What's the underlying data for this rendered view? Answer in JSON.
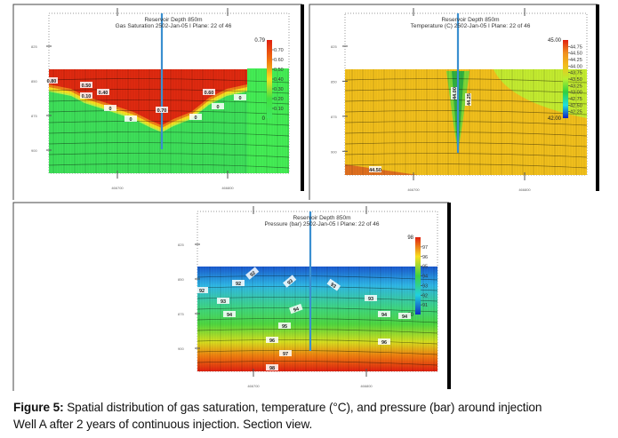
{
  "panels": [
    {
      "title_line1": "Reservoir Depth 850m",
      "title_line2": "Gas Saturation  2502-Jan-05   I Plane: 22 of 46",
      "y_ticks": [
        "825",
        "850",
        "875",
        "900"
      ],
      "x_ticks": [
        "466700",
        "466800"
      ],
      "colorbar": {
        "max_label": "0.79",
        "min_label": "0",
        "tick_labels": [
          "0.70",
          "0.60",
          "0.50",
          "0.40",
          "0.30",
          "0.20",
          "0.10"
        ],
        "colors": [
          "#e02010",
          "#f07010",
          "#f8e020",
          "#40e040",
          "#40e860"
        ]
      },
      "contour_labels": [
        "0.80",
        "0.50",
        "0.40",
        "0.10",
        "0",
        "0",
        "0.70",
        "0",
        "0.60",
        "0",
        "0"
      ]
    },
    {
      "title_line1": "Reservoir Depth 850m",
      "title_line2": "Temperature (C)  2502-Jan-05   I Plane: 22 of 46",
      "y_ticks": [
        "825",
        "850",
        "875",
        "900"
      ],
      "x_ticks": [
        "466700",
        "466800"
      ],
      "colorbar": {
        "max_label": "45.00",
        "min_label": "42.00",
        "tick_labels": [
          "44.75",
          "44.50",
          "44.25",
          "44.00",
          "43.75",
          "43.50",
          "43.25",
          "43.00",
          "42.75",
          "42.50",
          "42.25"
        ],
        "colors": [
          "#e02010",
          "#f09020",
          "#f2c01c",
          "#b8f030",
          "#30d040",
          "#20e0e0",
          "#1020c0"
        ]
      },
      "contour_labels": [
        "44.00",
        "44.25",
        "44.50"
      ]
    },
    {
      "title_line1": "Reservoir Depth 850m",
      "title_line2": "Pressure (bar)  2502-Jan-05   I Plane: 22 of 46",
      "y_ticks": [
        "825",
        "850",
        "875",
        "900"
      ],
      "x_ticks": [
        "466700",
        "466800"
      ],
      "colorbar": {
        "max_label": "98",
        "min_label": "90",
        "tick_labels": [
          "97",
          "96",
          "95",
          "94",
          "93",
          "92",
          "91"
        ],
        "colors": [
          "#e02010",
          "#f8e020",
          "#40d040",
          "#20d0e0",
          "#1030c0"
        ]
      },
      "contour_labels": [
        "92",
        "92",
        "92",
        "93",
        "94",
        "93",
        "94",
        "95",
        "96",
        "97",
        "98",
        "93",
        "93",
        "94",
        "96",
        "94"
      ]
    }
  ],
  "caption": {
    "label": "Figure 5:",
    "line1": " Spatial distribution of gas saturation, temperature (°C), and pressure (bar) around injection",
    "line2": "Well A after 2 years of continuous injection. Section view."
  }
}
